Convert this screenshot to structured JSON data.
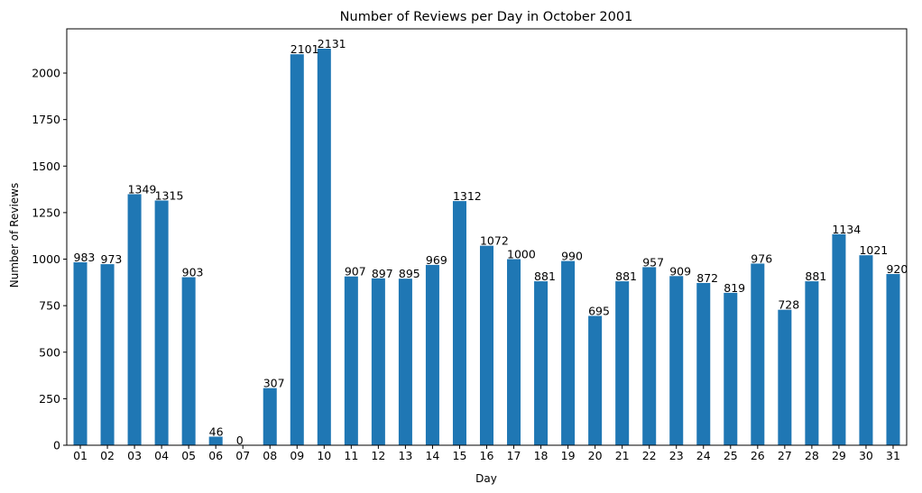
{
  "chart_data": {
    "type": "bar",
    "title": "Number of Reviews per Day in October 2001",
    "xlabel": "Day",
    "ylabel": "Number of Reviews",
    "categories": [
      "01",
      "02",
      "03",
      "04",
      "05",
      "06",
      "07",
      "08",
      "09",
      "10",
      "11",
      "12",
      "13",
      "14",
      "15",
      "16",
      "17",
      "18",
      "19",
      "20",
      "21",
      "22",
      "23",
      "24",
      "25",
      "26",
      "27",
      "28",
      "29",
      "30",
      "31"
    ],
    "values": [
      983,
      973,
      1349,
      1315,
      903,
      46,
      0,
      307,
      2101,
      2131,
      907,
      897,
      895,
      969,
      1312,
      1072,
      1000,
      881,
      990,
      695,
      881,
      957,
      909,
      872,
      819,
      976,
      728,
      881,
      1134,
      1021,
      920
    ],
    "yticks": [
      0,
      250,
      500,
      750,
      1000,
      1250,
      1500,
      1750,
      2000
    ],
    "ylim": [
      0,
      2237.55
    ],
    "bar_color": "#1f77b4",
    "grid": false,
    "legend": false,
    "data_labels": true
  }
}
